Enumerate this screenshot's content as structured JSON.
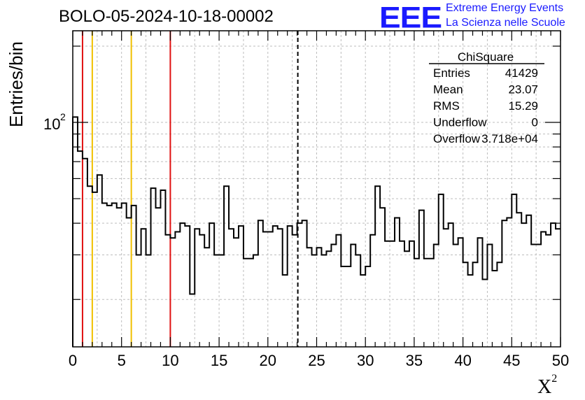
{
  "title": "BOLO-05-2024-10-18-00002",
  "logo": {
    "mark": "EEE",
    "line1": "Extreme Energy Events",
    "line2": "La Scienza nelle Scuole",
    "color": "#1a1aff"
  },
  "stats_box": {
    "name": "ChiSquare",
    "rows": [
      {
        "label": "Entries",
        "value": "41429"
      },
      {
        "label": "Mean",
        "value": "23.07"
      },
      {
        "label": "RMS",
        "value": "15.29"
      },
      {
        "label": "Underflow",
        "value": "0"
      },
      {
        "label": "Overflow",
        "value": "3.718e+04"
      }
    ]
  },
  "chart_data": {
    "type": "histogram",
    "title": "BOLO-05-2024-10-18-00002",
    "xlabel": "X",
    "xlabel_sup": "2",
    "ylabel": "Entries/bin",
    "xlim": [
      0,
      50
    ],
    "ylim": [
      13,
      230
    ],
    "yscale": "log",
    "y_tick_label": {
      "base": "10",
      "exp": "2",
      "value": 100
    },
    "x_ticks": [
      0,
      5,
      10,
      15,
      20,
      25,
      30,
      35,
      40,
      45,
      50
    ],
    "grid": true,
    "bin_width": 0.5,
    "values": [
      105,
      77,
      72,
      56,
      53,
      62,
      48,
      47,
      48,
      46,
      48,
      42,
      47,
      30,
      38,
      30,
      55,
      46,
      54,
      36,
      35,
      37,
      40,
      39,
      21,
      38,
      36,
      32,
      40,
      30,
      30,
      56,
      38,
      35,
      39,
      29,
      29,
      30,
      41,
      37,
      37,
      39,
      38,
      25,
      39,
      36,
      40,
      41,
      32,
      30,
      32,
      30,
      31,
      33,
      36,
      27,
      27,
      33,
      30,
      25,
      27,
      36,
      56,
      46,
      34,
      34,
      42,
      34,
      31,
      34,
      29,
      45,
      29,
      29,
      33,
      52,
      38,
      40,
      33,
      35,
      28,
      25,
      28,
      35,
      24,
      33,
      26,
      28,
      41,
      42,
      52,
      44,
      40,
      43,
      33,
      33,
      37,
      36,
      40,
      38
    ],
    "markers": [
      {
        "x": 1,
        "color": "#e01010",
        "style": "solid"
      },
      {
        "x": 2,
        "color": "#f0c000",
        "style": "solid"
      },
      {
        "x": 6,
        "color": "#f0c000",
        "style": "solid"
      },
      {
        "x": 10,
        "color": "#e01010",
        "style": "solid"
      },
      {
        "x": 23.07,
        "color": "#000000",
        "style": "dashed"
      }
    ]
  }
}
